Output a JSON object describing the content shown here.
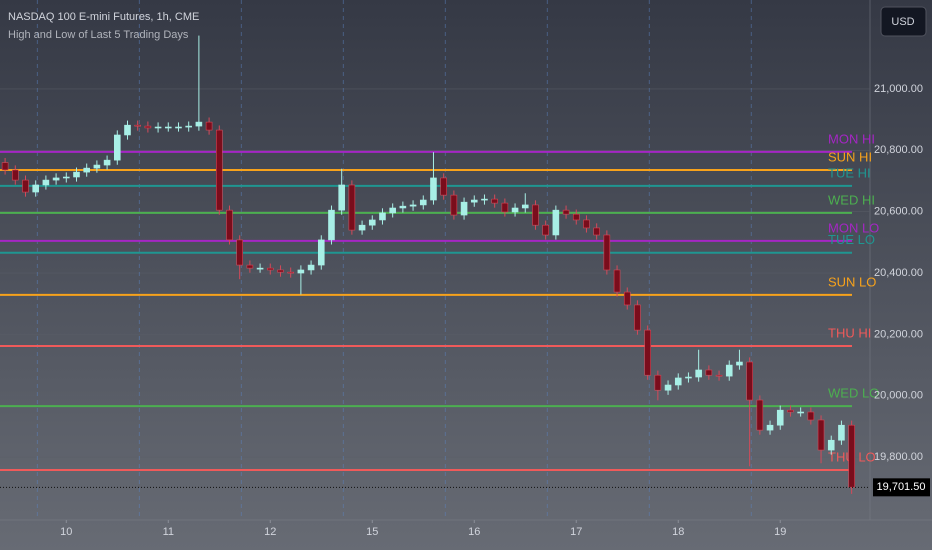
{
  "chart_data": {
    "type": "candlestick",
    "title": "NASDAQ 100 E-mini Futures, 1h, CME",
    "subtitle": "High and Low of Last 5 Trading Days",
    "currency": "USD",
    "up_color": "#a8efe6",
    "down_color": "#7a0d1c",
    "x": [
      -0.6,
      -0.5,
      -0.4,
      -0.3,
      -0.2,
      -0.1,
      0,
      0.1,
      0.2,
      0.3,
      0.4,
      0.5,
      0.6,
      0.7,
      0.8,
      0.9,
      1,
      1.1,
      1.2,
      1.3,
      1.4,
      1.5,
      1.6,
      1.7,
      1.8,
      1.9,
      2,
      2.1,
      2.2,
      2.3,
      2.4,
      2.5,
      2.6,
      2.7,
      2.8,
      2.9,
      3,
      3.1,
      3.2,
      3.3,
      3.4,
      3.5,
      3.6,
      3.7,
      3.8,
      3.9,
      4,
      4.1,
      4.2,
      4.3,
      4.4,
      4.5,
      4.6,
      4.7,
      4.8,
      4.9,
      5,
      5.1,
      5.2,
      5.3,
      5.4,
      5.5,
      5.6,
      5.7,
      5.8,
      5.9,
      6,
      6.1,
      6.2,
      6.3,
      6.4,
      6.5,
      6.6,
      6.7,
      6.8,
      6.9,
      7,
      7.1,
      7.2,
      7.3,
      7.4,
      7.5,
      7.6,
      7.7
    ],
    "open": [
      20760,
      20736,
      20703,
      20664,
      20687,
      20703,
      20710,
      20713,
      20729,
      20742,
      20752,
      20768,
      20850,
      20882,
      20879,
      20873,
      20876,
      20876,
      20876,
      20879,
      20892,
      20866,
      20605,
      20508,
      20426,
      20416,
      20416,
      20410,
      20403,
      20400,
      20410,
      20426,
      20508,
      20605,
      20687,
      20540,
      20556,
      20573,
      20596,
      20612,
      20618,
      20622,
      20638,
      20710,
      20654,
      20589,
      20631,
      20638,
      20641,
      20628,
      20599,
      20612,
      20622,
      20556,
      20524,
      20605,
      20592,
      20573,
      20547,
      20524,
      20410,
      20338,
      20296,
      20214,
      20067,
      20018,
      20035,
      20058,
      20061,
      20084,
      20067,
      20064,
      20100,
      20110,
      19986,
      19888,
      19904,
      19953,
      19947,
      19947,
      19921,
      19823,
      19855,
      19904
    ],
    "high": [
      20775,
      20751,
      20718,
      20702,
      20718,
      20725,
      20728,
      20744,
      20757,
      20767,
      20783,
      20865,
      20897,
      20897,
      20894,
      20891,
      20891,
      20891,
      20894,
      21174,
      20907,
      20881,
      20620,
      20523,
      20441,
      20431,
      20431,
      20425,
      20418,
      20425,
      20441,
      20523,
      20620,
      20740,
      20702,
      20571,
      20588,
      20611,
      20627,
      20633,
      20637,
      20653,
      20794,
      20725,
      20669,
      20646,
      20653,
      20656,
      20656,
      20643,
      20627,
      20660,
      20637,
      20571,
      20620,
      20620,
      20607,
      20588,
      20562,
      20539,
      20425,
      20353,
      20311,
      20229,
      20082,
      20050,
      20073,
      20076,
      20150,
      20099,
      20082,
      20115,
      20150,
      20125,
      20001,
      19919,
      19968,
      19968,
      19962,
      19962,
      19936,
      19870,
      19919,
      19919
    ],
    "low": [
      20721,
      20688,
      20649,
      20649,
      20672,
      20688,
      20695,
      20698,
      20714,
      20727,
      20737,
      20753,
      20835,
      20864,
      20858,
      20858,
      20861,
      20861,
      20861,
      20864,
      20851,
      20590,
      20493,
      20380,
      20401,
      20401,
      20395,
      20388,
      20385,
      20330,
      20395,
      20411,
      20493,
      20590,
      20525,
      20525,
      20541,
      20558,
      20581,
      20597,
      20603,
      20607,
      20623,
      20639,
      20574,
      20574,
      20616,
      20623,
      20613,
      20584,
      20584,
      20597,
      20541,
      20509,
      20509,
      20577,
      20558,
      20532,
      20509,
      20395,
      20323,
      20281,
      20199,
      20052,
      19985,
      20003,
      20020,
      20043,
      20046,
      20052,
      20049,
      20049,
      20085,
      19770,
      19873,
      19873,
      19889,
      19932,
      19932,
      19906,
      19780,
      19808,
      19840,
      19680
    ],
    "close": [
      20736,
      20703,
      20664,
      20687,
      20703,
      20710,
      20713,
      20729,
      20742,
      20752,
      20768,
      20850,
      20882,
      20879,
      20873,
      20876,
      20876,
      20876,
      20879,
      20892,
      20866,
      20605,
      20508,
      20426,
      20416,
      20416,
      20410,
      20403,
      20400,
      20410,
      20426,
      20508,
      20605,
      20687,
      20540,
      20556,
      20573,
      20596,
      20612,
      20618,
      20622,
      20638,
      20710,
      20654,
      20589,
      20631,
      20638,
      20641,
      20628,
      20599,
      20612,
      20622,
      20556,
      20524,
      20605,
      20592,
      20573,
      20547,
      20524,
      20410,
      20338,
      20296,
      20214,
      20067,
      20018,
      20035,
      20058,
      20061,
      20084,
      20067,
      20064,
      20100,
      20110,
      19986,
      19888,
      19904,
      19953,
      19947,
      19947,
      19921,
      19823,
      19855,
      19904,
      19702
    ],
    "xlim": [
      -0.65,
      7.88
    ],
    "xticks": [
      {
        "value": 0,
        "label": "10"
      },
      {
        "value": 1,
        "label": "11"
      },
      {
        "value": 2,
        "label": "12"
      },
      {
        "value": 3,
        "label": "15"
      },
      {
        "value": 4,
        "label": "16"
      },
      {
        "value": 5,
        "label": "17"
      },
      {
        "value": 6,
        "label": "18"
      },
      {
        "value": 7,
        "label": "19"
      }
    ],
    "ylim": [
      19595,
      21290
    ],
    "yticks": [
      {
        "value": 19800,
        "label": "19,800.00"
      },
      {
        "value": 20000,
        "label": "20,000.00"
      },
      {
        "value": 20200,
        "label": "20,200.00"
      },
      {
        "value": 20400,
        "label": "20,400.00"
      },
      {
        "value": 20600,
        "label": "20,600.00"
      },
      {
        "value": 20800,
        "label": "20,800.00"
      },
      {
        "value": 21000,
        "label": "21,000.00"
      }
    ],
    "levels": [
      {
        "name": "MON HI",
        "value": 20795,
        "color": "#a526c4"
      },
      {
        "name": "SUN HI",
        "value": 20736,
        "color": "#f7a21b"
      },
      {
        "name": "TUE HI",
        "value": 20684,
        "color": "#1f9691"
      },
      {
        "name": "WED HI",
        "value": 20596,
        "color": "#4caf50"
      },
      {
        "name": "MON LO",
        "value": 20505,
        "color": "#a526c4"
      },
      {
        "name": "TUE LO",
        "value": 20466,
        "color": "#1f9691"
      },
      {
        "name": "SUN LO",
        "value": 20329,
        "color": "#f7a21b"
      },
      {
        "name": "THU HI",
        "value": 20162,
        "color": "#f05a5a"
      },
      {
        "name": "WED LO",
        "value": 19966,
        "color": "#4caf50"
      },
      {
        "name": "THU LO",
        "value": 19758,
        "color": "#f05a5a"
      }
    ],
    "last_price": {
      "value": 19701.5,
      "label": "19,701.50"
    }
  }
}
